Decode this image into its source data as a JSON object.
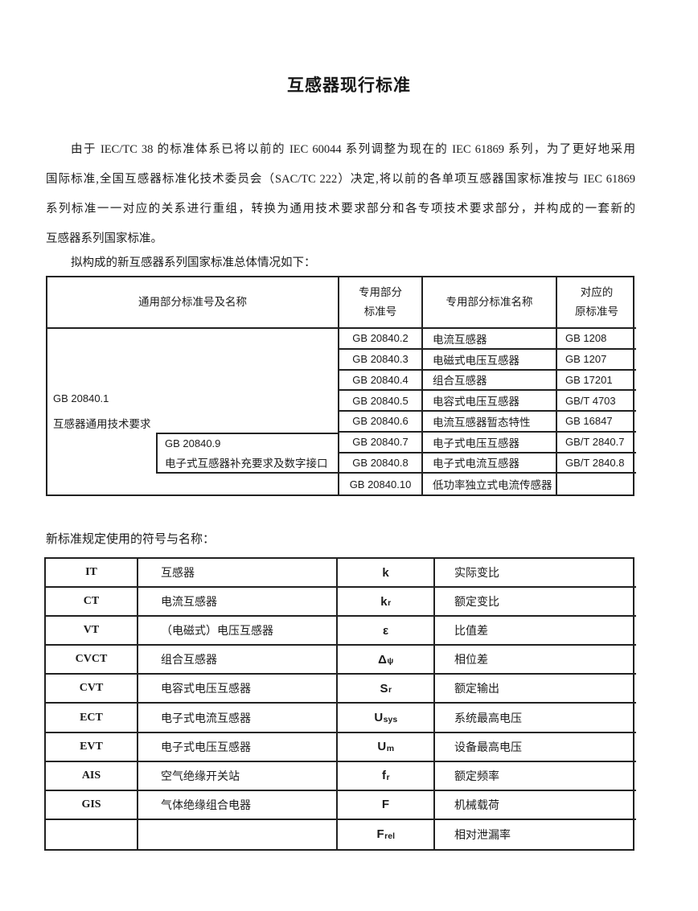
{
  "page": {
    "title": "互感器现行标准"
  },
  "intro": {
    "lines": [
      "由于 IEC/TC 38 的标准体系已将以前的 IEC 60044  系列调整为现在的 IEC 61869  系列，为了更好地采用",
      "国际标准,全国互感器标准化技术委员会（SAC/TC 222）决定,将以前的各单项互感器国家标准按与 IEC 61869",
      "系列标准一一对应的关系进行重组，转换为通用技术要求部分和各专项技术要求部分，并构成的一套新的",
      "互感器系列国家标准。"
    ],
    "lead_in": "拟构成的新互感器系列国家标准总体情况如下："
  },
  "table1": {
    "header": {
      "general": "通用部分标准号及名称",
      "special_no": {
        "line1": "专用部分",
        "line2": "标准号"
      },
      "special_name": "专用部分标准名称",
      "orig_no": {
        "line1": "对应的",
        "line2": "原标准号"
      }
    },
    "left_cell": {
      "line1": "GB 20840.1",
      "line2": "互感器通用技术要求"
    },
    "nested_cell": {
      "line1": "GB 20840.9",
      "line2": "电子式互感器补充要求及数字接口"
    },
    "rows": [
      {
        "no": "GB 20840.2",
        "name": "电流互感器",
        "orig": "GB 1208"
      },
      {
        "no": "GB 20840.3",
        "name": "电磁式电压互感器",
        "orig": "GB 1207"
      },
      {
        "no": "GB 20840.4",
        "name": "组合互感器",
        "orig": "GB 17201"
      },
      {
        "no": "GB 20840.5",
        "name": "电容式电压互感器",
        "orig": "GB/T 4703"
      },
      {
        "no": "GB 20840.6",
        "name": "电流互感器暂态特性",
        "orig": "GB 16847"
      },
      {
        "no": "GB 20840.7",
        "name": "电子式电压互感器",
        "orig": "GB/T 2840.7"
      },
      {
        "no": "GB 20840.8",
        "name": "电子式电流互感器",
        "orig": "GB/T 2840.8"
      },
      {
        "no": "GB 20840.10",
        "name": "低功率独立式电流传感器",
        "orig": ""
      }
    ]
  },
  "symbols": {
    "lead_in": "新标准规定使用的符号与名称：",
    "rows": [
      {
        "abbr": "IT",
        "name": "互感器",
        "sym": "k",
        "sub": "",
        "meaning": "实际变比"
      },
      {
        "abbr": "CT",
        "name": "电流互感器",
        "sym": "k",
        "sub": "r",
        "meaning": "额定变比"
      },
      {
        "abbr": "VT",
        "name": "（电磁式）电压互感器",
        "sym": "ε",
        "sub": "",
        "meaning": "比值差"
      },
      {
        "abbr": "CVCT",
        "name": "组合互感器",
        "sym": "Δ",
        "sub": "ψ",
        "meaning": "相位差"
      },
      {
        "abbr": "CVT",
        "name": "电容式电压互感器",
        "sym": "S",
        "sub": "r",
        "meaning": "额定输出"
      },
      {
        "abbr": "ECT",
        "name": "电子式电流互感器",
        "sym": "U",
        "sub": "sys",
        "meaning": "系统最高电压"
      },
      {
        "abbr": "EVT",
        "name": "电子式电压互感器",
        "sym": "U",
        "sub": "m",
        "meaning": "设备最高电压"
      },
      {
        "abbr": "AIS",
        "name": "空气绝缘开关站",
        "sym": "f",
        "sub": "r",
        "meaning": "额定频率"
      },
      {
        "abbr": "GIS",
        "name": "气体绝缘组合电器",
        "sym": "F",
        "sub": "",
        "meaning": "机械载荷"
      },
      {
        "abbr": "",
        "name": "",
        "sym": "F",
        "sub": "rel",
        "meaning": "相对泄漏率"
      }
    ],
    "border_color": "#212121",
    "text_color": "#1b1b1b"
  }
}
